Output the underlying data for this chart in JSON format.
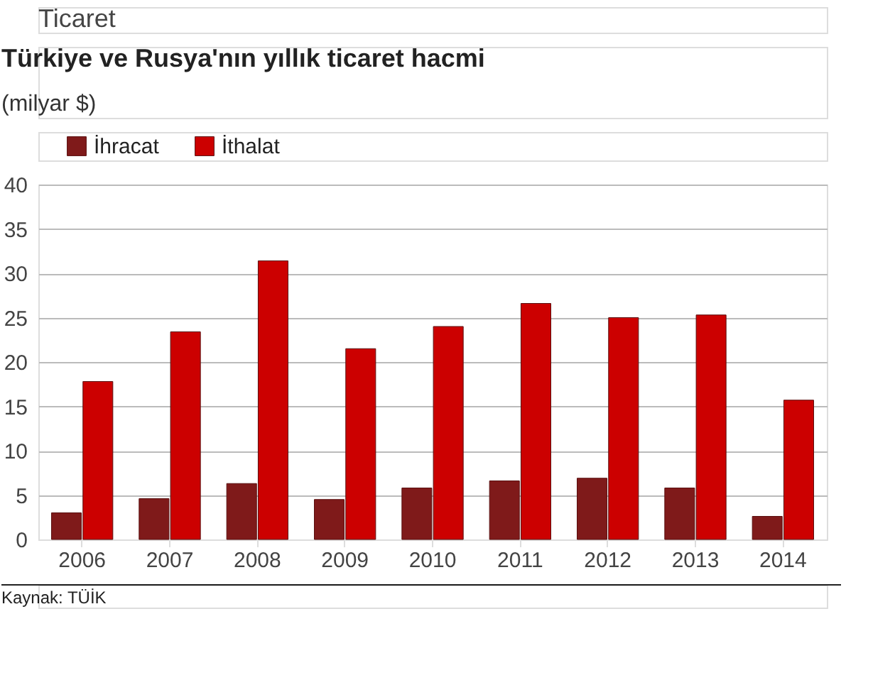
{
  "chart_data": {
    "type": "bar",
    "title": "Türkiye ve Rusya'nın yıllık ticaret hacmi",
    "subtitle": "(milyar $)",
    "annotations": [
      "Ticaret",
      "Kaynak: TÜİK"
    ],
    "categories": [
      "2006",
      "2007",
      "2008",
      "2009",
      "2010",
      "2011",
      "2012",
      "2013",
      "2014"
    ],
    "series": [
      {
        "name": "İhracat",
        "color": "#7f1a1a",
        "values": [
          3.0,
          4.6,
          6.3,
          4.5,
          5.8,
          6.6,
          6.9,
          5.8,
          2.6
        ]
      },
      {
        "name": "İthalat",
        "color": "#cc0000",
        "values": [
          17.8,
          23.4,
          31.4,
          21.5,
          24.0,
          26.6,
          25.0,
          25.3,
          15.7
        ]
      }
    ],
    "ylim": [
      0,
      40
    ],
    "yticks": [
      0,
      5,
      10,
      15,
      20,
      25,
      30,
      35,
      40
    ],
    "grid": "y",
    "legend": "top left"
  }
}
